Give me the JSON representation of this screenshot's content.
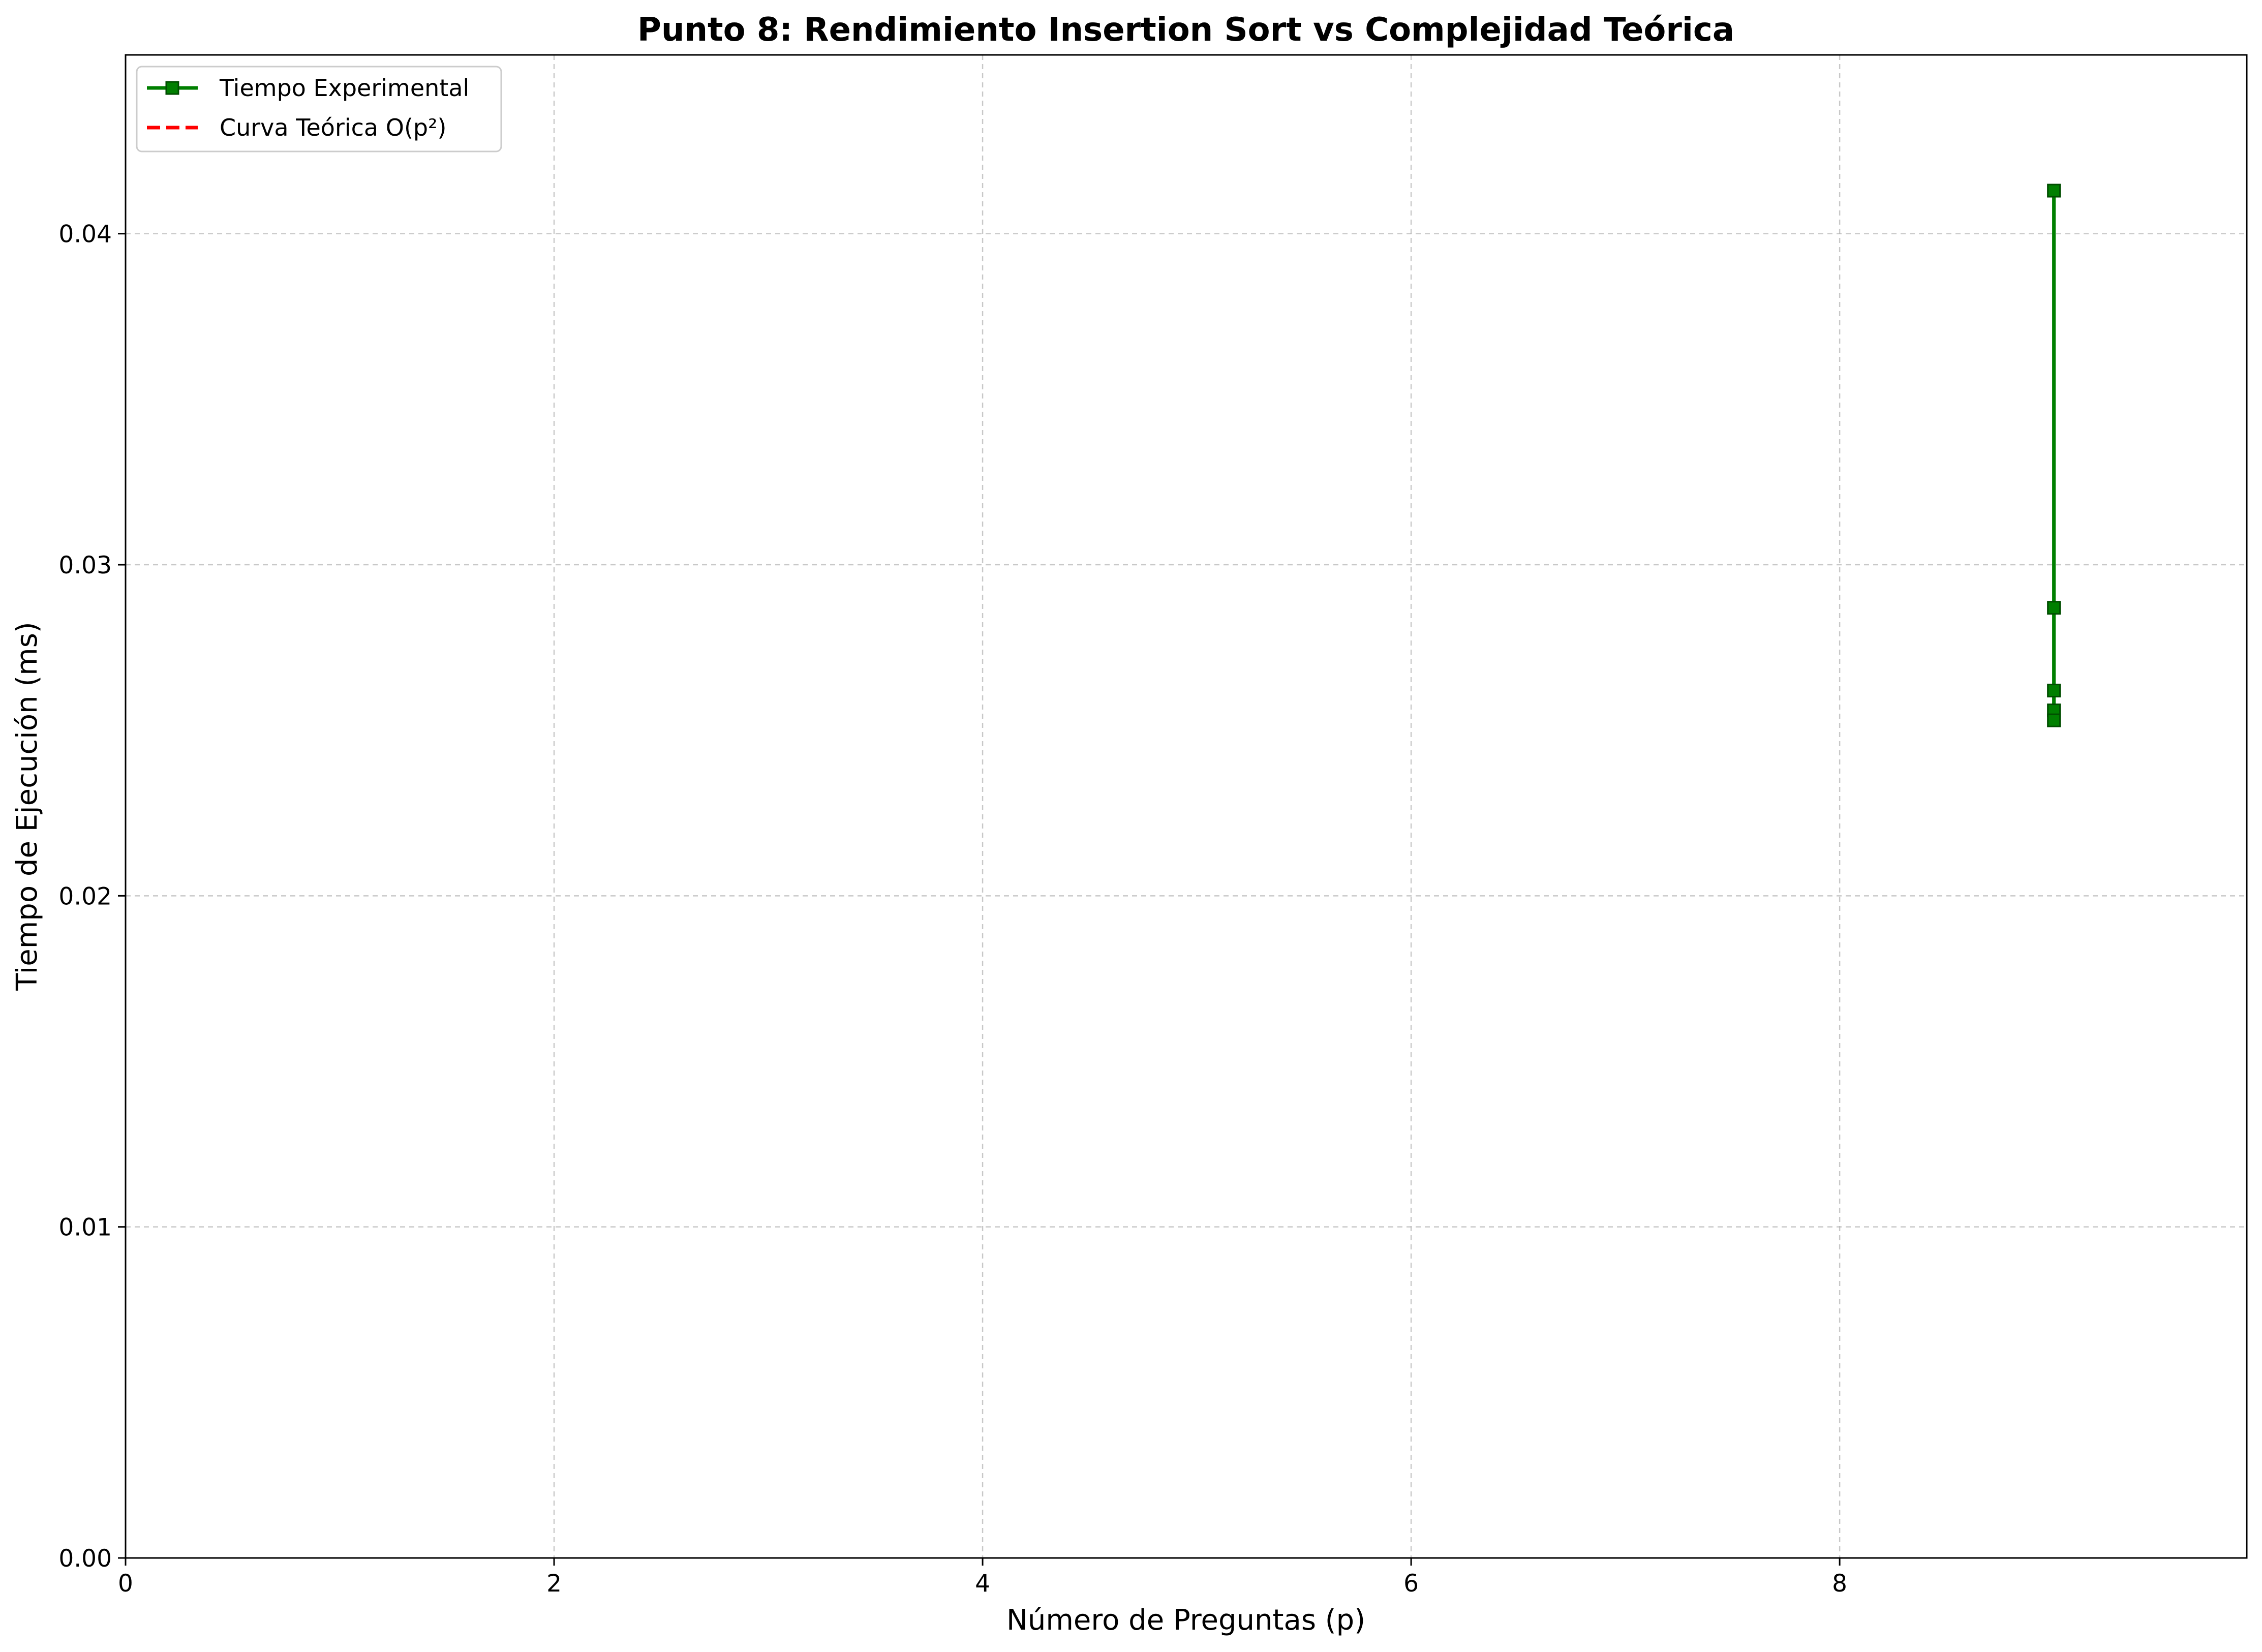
{
  "chart_data": {
    "type": "line",
    "title": "Punto 8: Rendimiento Insertion Sort vs Complejidad Teórica",
    "xlabel": "Número de Preguntas (p)",
    "ylabel": "Tiempo de Ejecución (ms)",
    "xlim": [
      0,
      9.9
    ],
    "ylim": [
      0,
      0.0454
    ],
    "xticks": [
      0,
      2,
      4,
      6,
      8
    ],
    "xtick_labels": [
      "0",
      "2",
      "4",
      "6",
      "8"
    ],
    "yticks": [
      0,
      0.01,
      0.02,
      0.03,
      0.04
    ],
    "ytick_labels": [
      "0.00",
      "0.01",
      "0.02",
      "0.03",
      "0.04"
    ],
    "grid": true,
    "legend_position": "top-left",
    "series": [
      {
        "name": "Tiempo Experimental",
        "color": "#007f00",
        "marker": "square",
        "linestyle": "solid",
        "x": [
          9,
          9,
          9,
          9,
          9
        ],
        "y": [
          0.0413,
          0.0287,
          0.0262,
          0.0256,
          0.0253
        ]
      },
      {
        "name": "Curva Teórica O(p²)",
        "color": "#ff0000",
        "marker": "none",
        "linestyle": "dashed",
        "x": [],
        "y": []
      }
    ]
  }
}
